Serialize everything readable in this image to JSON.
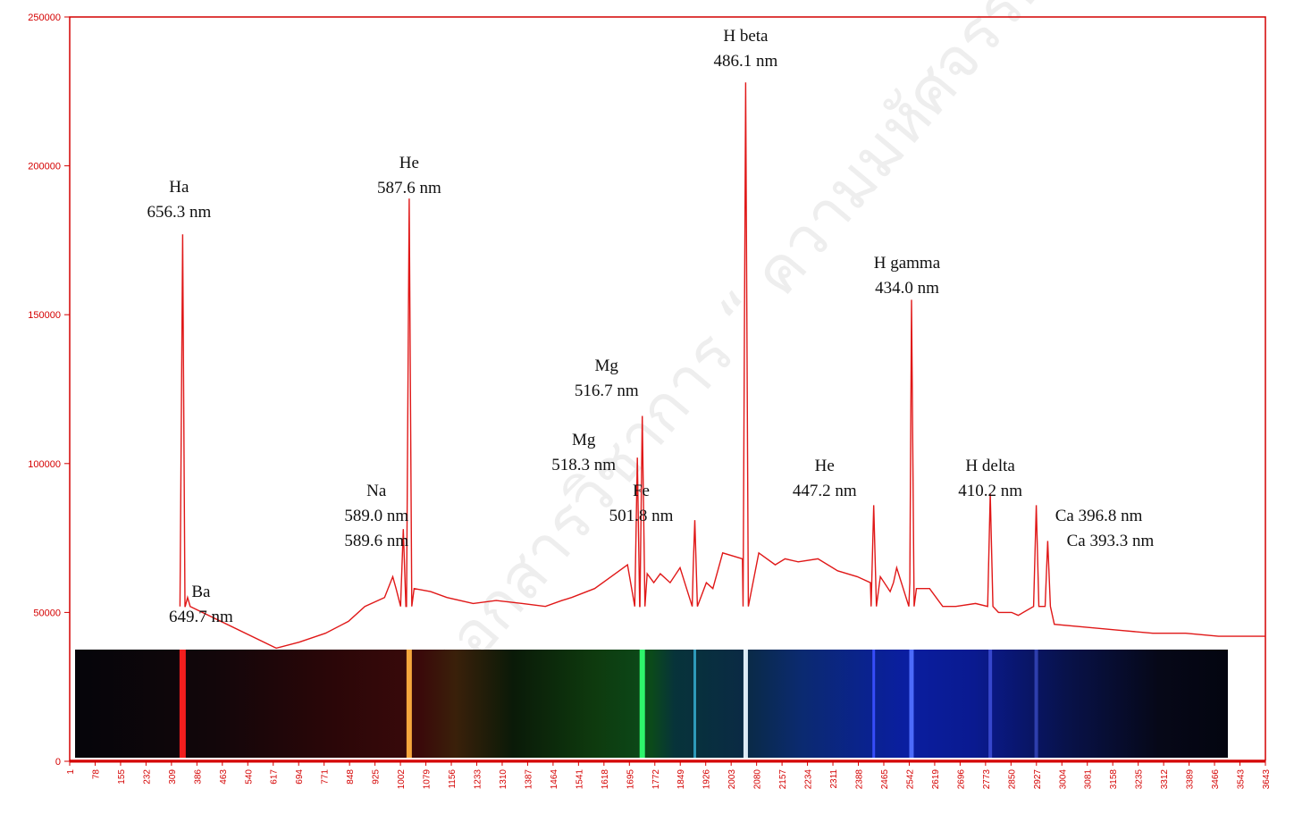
{
  "chart_data": {
    "type": "line",
    "title": "",
    "xlabel": "",
    "ylabel": "",
    "ylim": [
      0,
      250000
    ],
    "xlim": [
      1,
      3643
    ],
    "grid": false,
    "colors": {
      "axis": "#d40000",
      "line": "#e01818",
      "spectrum_bg": "#050510"
    },
    "y_ticks": [
      0,
      50000,
      100000,
      150000,
      200000,
      250000
    ],
    "x_ticks": [
      1,
      78,
      155,
      232,
      309,
      386,
      463,
      540,
      617,
      694,
      771,
      848,
      925,
      1002,
      1079,
      1156,
      1233,
      1310,
      1387,
      1464,
      1541,
      1618,
      1695,
      1772,
      1849,
      1926,
      2003,
      2080,
      2157,
      2234,
      2311,
      2388,
      2465,
      2542,
      2619,
      2696,
      2773,
      2850,
      2927,
      3004,
      3081,
      3158,
      3235,
      3312,
      3389,
      3466,
      3543,
      3643
    ],
    "series": [
      {
        "x": [
          630,
          700,
          780,
          850,
          900,
          960,
          985,
          995,
          1010,
          1050,
          1100,
          1150,
          1230,
          1300,
          1380,
          1450,
          1500,
          1530,
          1600,
          1650,
          1700,
          1760,
          1780,
          1800,
          1830,
          1860,
          1880,
          1900,
          1940,
          1960,
          1990,
          2050,
          2100,
          2150,
          2180,
          2220,
          2280,
          2340,
          2400,
          2440,
          2470,
          2500,
          2510,
          2520,
          2560,
          2580,
          2620,
          2660,
          2700,
          2760,
          2830,
          2870,
          2890,
          3000,
          3100,
          3200,
          3300,
          3400,
          3500,
          3643
        ],
        "y": [
          38000,
          40000,
          43000,
          47000,
          52000,
          55000,
          62000,
          58000,
          56000,
          58000,
          57000,
          55000,
          53000,
          54000,
          53000,
          52000,
          54000,
          55000,
          58000,
          62000,
          66000,
          63000,
          60000,
          63000,
          60000,
          65000,
          58000,
          65000,
          60000,
          58000,
          70000,
          68000,
          70000,
          66000,
          68000,
          67000,
          68000,
          64000,
          62000,
          60000,
          62000,
          57000,
          60000,
          65000,
          60000,
          58000,
          58000,
          52000,
          52000,
          53000,
          50000,
          50000,
          49000,
          46000,
          45000,
          44000,
          43000,
          43000,
          42000,
          42000
        ]
      }
    ],
    "peaks": [
      {
        "x": 345,
        "y": 177000,
        "label": [
          "Ha",
          "656.3 nm"
        ]
      },
      {
        "x": 1035,
        "y": 189000,
        "label": [
          "He",
          "587.6 nm"
        ]
      },
      {
        "x": 1017,
        "y": 78000,
        "label": [
          "Na",
          "589.0 nm",
          "589.6 nm"
        ]
      },
      {
        "x": 1745,
        "y": 116000,
        "label": [
          "Mg",
          "516.7 nm"
        ]
      },
      {
        "x": 1730,
        "y": 102000,
        "label": [
          "Mg",
          "518.3 nm"
        ]
      },
      {
        "x": 1905,
        "y": 81000,
        "label": [
          "Fe",
          "501.8 nm"
        ]
      },
      {
        "x": 2060,
        "y": 228000,
        "label": [
          "H beta",
          "486.1 nm"
        ]
      },
      {
        "x": 2450,
        "y": 86000,
        "label": [
          "He",
          "447.2 nm"
        ]
      },
      {
        "x": 2565,
        "y": 155000,
        "label": [
          "H gamma",
          "434.0 nm"
        ]
      },
      {
        "x": 2805,
        "y": 90000,
        "label": [
          "H delta",
          "410.2 nm"
        ]
      },
      {
        "x": 2945,
        "y": 86000,
        "label": [
          "Ca 396.8 nm"
        ]
      },
      {
        "x": 2980,
        "y": 74000,
        "label": [
          "Ca 393.3 nm"
        ]
      },
      {
        "x": 360,
        "y": 55000,
        "label": [
          "Ba",
          "649.7 nm"
        ]
      }
    ]
  },
  "watermark": "เอกสารวิชาการ “ ความมหัศจรรย์ของจักรวาล ” ของ ดร. ศรัณย์"
}
